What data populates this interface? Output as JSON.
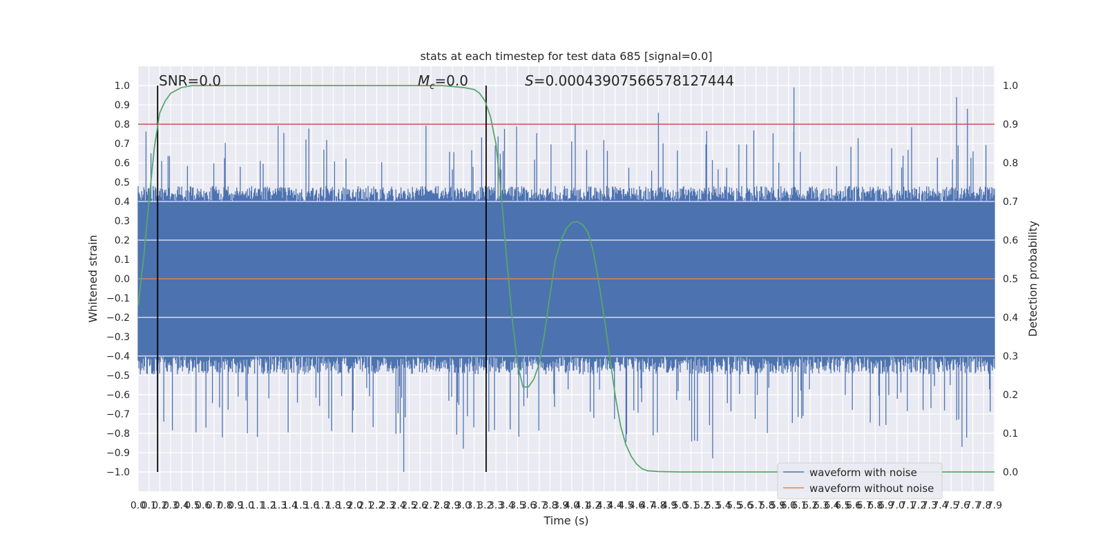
{
  "chart_data": {
    "type": "line",
    "title": "stats at each timestep for test data 685 [signal=0.0]",
    "xlabel": "Time (s)",
    "ylabel": "Whitened strain",
    "y2label": "Detection probability",
    "xlim": [
      0.0,
      7.9
    ],
    "ylim": [
      -1.1,
      1.1
    ],
    "y2lim": [
      -0.05,
      1.05
    ],
    "xticks": [
      "0.0",
      "0.1",
      "0.2",
      "0.3",
      "0.4",
      "0.5",
      "0.6",
      "0.7",
      "0.8",
      "0.9",
      "1.0",
      "1.1",
      "1.2",
      "1.3",
      "1.4",
      "1.5",
      "1.6",
      "1.7",
      "1.8",
      "1.9",
      "2.0",
      "2.1",
      "2.2",
      "2.3",
      "2.4",
      "2.5",
      "2.6",
      "2.7",
      "2.8",
      "2.9",
      "3.0",
      "3.1",
      "3.2",
      "3.3",
      "3.4",
      "3.5",
      "3.6",
      "3.7",
      "3.8",
      "3.9",
      "4.0",
      "4.1",
      "4.2",
      "4.3",
      "4.4",
      "4.5",
      "4.6",
      "4.7",
      "4.8",
      "4.9",
      "5.0",
      "5.1",
      "5.2",
      "5.3",
      "5.4",
      "5.5",
      "5.6",
      "5.7",
      "5.8",
      "5.9",
      "6.0",
      "6.1",
      "6.2",
      "6.3",
      "6.4",
      "6.5",
      "6.6",
      "6.7",
      "6.8",
      "6.9",
      "7.0",
      "7.1",
      "7.2",
      "7.3",
      "7.4",
      "7.5",
      "7.6",
      "7.7",
      "7.8",
      "7.9"
    ],
    "yticks": [
      "1.0",
      "0.9",
      "0.8",
      "0.7",
      "0.6",
      "0.5",
      "0.4",
      "0.3",
      "0.2",
      "0.1",
      "0.0",
      "−0.1",
      "−0.2",
      "−0.3",
      "−0.4",
      "−0.5",
      "−0.6",
      "−0.7",
      "−0.8",
      "−0.9",
      "−1.0"
    ],
    "y2ticks": [
      "1.0",
      "0.9",
      "0.8",
      "0.7",
      "0.6",
      "0.5",
      "0.4",
      "0.3",
      "0.2",
      "0.1",
      "0.0"
    ],
    "annotations": {
      "snr": "SNR=0.0",
      "mc_symbol": "M",
      "mc_sub": "c",
      "mc_value": "=0.0",
      "s_symbol": "S",
      "s_value": "=0.00043907566578127444"
    },
    "vertical_markers_x": [
      0.18,
      3.21
    ],
    "threshold": {
      "y2": 0.9,
      "color": "#c44e52"
    },
    "series": [
      {
        "name": "waveform with noise",
        "color": "#4c72b0",
        "noise_amplitude_envelope": {
          "typical_abs_max": 0.45,
          "peak_max": 0.99,
          "peak_min": -1.0,
          "inner_band": [
            -0.4,
            0.4
          ]
        }
      },
      {
        "name": "waveform without noise",
        "color": "#dd8452",
        "constant_value": 0.0
      },
      {
        "name": "detection probability",
        "color": "#55a868",
        "axis": "y2",
        "points": [
          [
            0.0,
            0.43
          ],
          [
            0.05,
            0.55
          ],
          [
            0.1,
            0.7
          ],
          [
            0.15,
            0.84
          ],
          [
            0.2,
            0.93
          ],
          [
            0.25,
            0.96
          ],
          [
            0.3,
            0.98
          ],
          [
            0.4,
            0.995
          ],
          [
            0.5,
            1.0
          ],
          [
            1.0,
            1.0
          ],
          [
            2.0,
            1.0
          ],
          [
            2.8,
            1.0
          ],
          [
            3.0,
            0.995
          ],
          [
            3.1,
            0.99
          ],
          [
            3.15,
            0.98
          ],
          [
            3.2,
            0.96
          ],
          [
            3.25,
            0.92
          ],
          [
            3.3,
            0.85
          ],
          [
            3.35,
            0.72
          ],
          [
            3.4,
            0.55
          ],
          [
            3.45,
            0.4
          ],
          [
            3.5,
            0.28
          ],
          [
            3.55,
            0.22
          ],
          [
            3.6,
            0.22
          ],
          [
            3.65,
            0.24
          ],
          [
            3.7,
            0.28
          ],
          [
            3.75,
            0.36
          ],
          [
            3.8,
            0.46
          ],
          [
            3.85,
            0.55
          ],
          [
            3.9,
            0.6
          ],
          [
            3.95,
            0.63
          ],
          [
            4.0,
            0.645
          ],
          [
            4.05,
            0.648
          ],
          [
            4.1,
            0.64
          ],
          [
            4.15,
            0.62
          ],
          [
            4.2,
            0.57
          ],
          [
            4.25,
            0.49
          ],
          [
            4.3,
            0.4
          ],
          [
            4.35,
            0.3
          ],
          [
            4.4,
            0.2
          ],
          [
            4.45,
            0.12
          ],
          [
            4.5,
            0.07
          ],
          [
            4.55,
            0.04
          ],
          [
            4.6,
            0.02
          ],
          [
            4.65,
            0.008
          ],
          [
            4.7,
            0.003
          ],
          [
            4.8,
            0.001
          ],
          [
            5.0,
            0.0
          ],
          [
            6.0,
            0.0
          ],
          [
            7.9,
            0.0
          ]
        ]
      }
    ],
    "legend": {
      "placement": "bottom-right",
      "entries": [
        "waveform with noise",
        "waveform without noise"
      ]
    },
    "grid": true,
    "colors": {
      "plot_bg": "#eaeaf2",
      "grid": "#ffffff",
      "marker": "#000000"
    }
  }
}
